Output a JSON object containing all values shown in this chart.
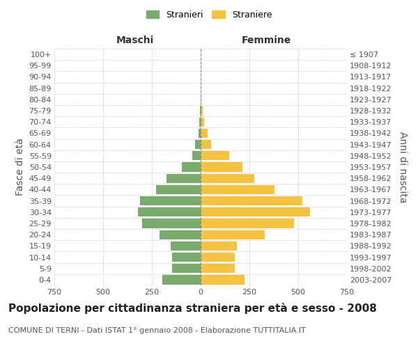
{
  "age_groups": [
    "0-4",
    "5-9",
    "10-14",
    "15-19",
    "20-24",
    "25-29",
    "30-34",
    "35-39",
    "40-44",
    "45-49",
    "50-54",
    "55-59",
    "60-64",
    "65-69",
    "70-74",
    "75-79",
    "80-84",
    "85-89",
    "90-94",
    "95-99",
    "100+"
  ],
  "birth_years": [
    "2003-2007",
    "1998-2002",
    "1993-1997",
    "1988-1992",
    "1983-1987",
    "1978-1982",
    "1973-1977",
    "1968-1972",
    "1963-1967",
    "1958-1962",
    "1953-1957",
    "1948-1952",
    "1943-1947",
    "1938-1942",
    "1933-1937",
    "1928-1932",
    "1923-1927",
    "1918-1922",
    "1913-1917",
    "1908-1912",
    "≤ 1907"
  ],
  "maschi": [
    195,
    145,
    145,
    155,
    210,
    300,
    320,
    310,
    230,
    175,
    95,
    42,
    28,
    12,
    8,
    3,
    0,
    0,
    0,
    0,
    0
  ],
  "femmine": [
    225,
    175,
    175,
    185,
    330,
    480,
    560,
    520,
    380,
    275,
    215,
    145,
    55,
    35,
    18,
    10,
    5,
    0,
    0,
    0,
    0
  ],
  "maschi_color": "#7aab6e",
  "femmine_color": "#f5c242",
  "grid_color": "#cccccc",
  "title": "Popolazione per cittadinanza straniera per età e sesso - 2008",
  "subtitle": "COMUNE DI TERNI - Dati ISTAT 1° gennaio 2008 - Elaborazione TUTTITALIA.IT",
  "xlabel_left": "Maschi",
  "xlabel_right": "Femmine",
  "ylabel_left": "Fasce di età",
  "ylabel_right": "Anni di nascita",
  "legend_stranieri": "Stranieri",
  "legend_straniere": "Straniere",
  "xlim": 750,
  "title_fontsize": 11,
  "subtitle_fontsize": 8,
  "tick_fontsize": 8,
  "label_fontsize": 10
}
